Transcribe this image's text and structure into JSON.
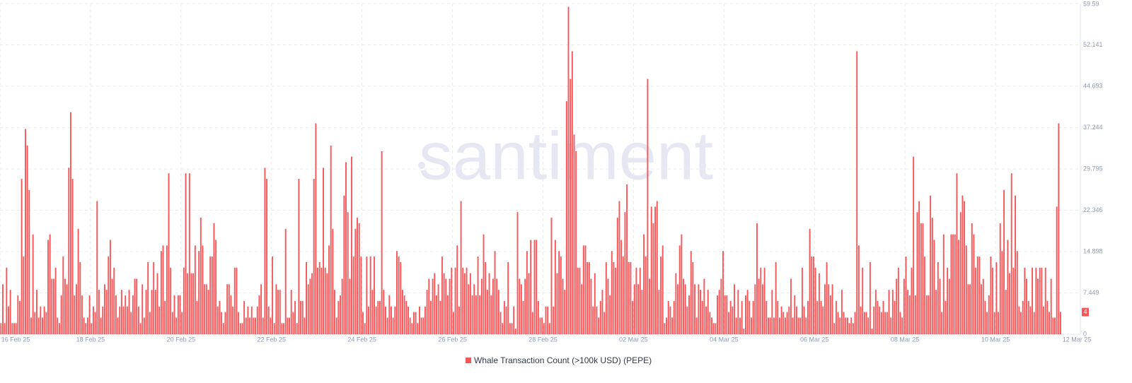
{
  "chart_data": {
    "type": "bar",
    "watermark": "santiment",
    "series": [
      {
        "name": "Whale Transaction Count (>100k USD) (PEPE)",
        "color": "#f6585a",
        "values": [
          2,
          9,
          2,
          12,
          5,
          8,
          2,
          2,
          2,
          7,
          6,
          28,
          14,
          37,
          34,
          26,
          3,
          18,
          4,
          8,
          3,
          5,
          3,
          5,
          4,
          17,
          18,
          10,
          10,
          12,
          3,
          2,
          7,
          14,
          10,
          9,
          30,
          40,
          28,
          7,
          9,
          19,
          13,
          7,
          3,
          2,
          3,
          7,
          2,
          5,
          4,
          24,
          8,
          3,
          5,
          9,
          8,
          14,
          17,
          10,
          12,
          7,
          3,
          5,
          8,
          5,
          7,
          5,
          8,
          4,
          7,
          10,
          10,
          5,
          2,
          9,
          3,
          8,
          13,
          4,
          8,
          13,
          8,
          11,
          5,
          15,
          16,
          6,
          16,
          29,
          12,
          4,
          7,
          3,
          7,
          7,
          4,
          12,
          29,
          11,
          29,
          11,
          11,
          16,
          6,
          15,
          21,
          16,
          9,
          9,
          8,
          14,
          14,
          20,
          17,
          5,
          6,
          4,
          2,
          4,
          9,
          9,
          7,
          5,
          12,
          12,
          4,
          2,
          2,
          6,
          3,
          5,
          3,
          5,
          3,
          3,
          5,
          7,
          9,
          3,
          30,
          28,
          5,
          3,
          14,
          2,
          9,
          8,
          8,
          2,
          2,
          19,
          3,
          3,
          8,
          4,
          6,
          2,
          28,
          6,
          6,
          3,
          13,
          9,
          10,
          11,
          28,
          38,
          12,
          13,
          12,
          30,
          12,
          11,
          16,
          34,
          19,
          8,
          3,
          6,
          7,
          10,
          25,
          31,
          22,
          10,
          32,
          14,
          19,
          21,
          20,
          14,
          4,
          2,
          14,
          5,
          14,
          8,
          14,
          5,
          6,
          6,
          33,
          8,
          5,
          3,
          7,
          5,
          3,
          5,
          15,
          14,
          13,
          8,
          7,
          6,
          5,
          3,
          2,
          4,
          4,
          2,
          5,
          3,
          3,
          5,
          8,
          10,
          6,
          10,
          11,
          7,
          9,
          6,
          14,
          11,
          10,
          7,
          10,
          12,
          4,
          12,
          16,
          5,
          24,
          12,
          11,
          12,
          9,
          11,
          7,
          9,
          7,
          14,
          7,
          10,
          18,
          13,
          8,
          11,
          7,
          10,
          15,
          10,
          8,
          4,
          2,
          6,
          5,
          13,
          2,
          2,
          5,
          1,
          22,
          10,
          9,
          6,
          10,
          15,
          11,
          17,
          4,
          17,
          17,
          6,
          3,
          3,
          2,
          5,
          5,
          2,
          21,
          5,
          17,
          11,
          15,
          14,
          10,
          8,
          42,
          59,
          46,
          51,
          36,
          33,
          12,
          12,
          9,
          16,
          16,
          13,
          13,
          10,
          5,
          11,
          5,
          3,
          6,
          8,
          4,
          13,
          10,
          7,
          15,
          13,
          12,
          21,
          24,
          17,
          14,
          22,
          27,
          13,
          13,
          6,
          9,
          12,
          9,
          12,
          8,
          18,
          14,
          46,
          10,
          23,
          20,
          23,
          24,
          8,
          14,
          16,
          2,
          3,
          6,
          5,
          3,
          6,
          11,
          9,
          16,
          18,
          10,
          9,
          5,
          7,
          15,
          13,
          9,
          3,
          9,
          8,
          6,
          10,
          5,
          8,
          4,
          3,
          2,
          2,
          7,
          8,
          10,
          15,
          7,
          7,
          4,
          6,
          5,
          9,
          3,
          8,
          3,
          6,
          1,
          7,
          8,
          6,
          3,
          6,
          9,
          20,
          10,
          12,
          9,
          12,
          6,
          3,
          3,
          8,
          3,
          13,
          6,
          3,
          5,
          4,
          3,
          4,
          5,
          10,
          3,
          7,
          5,
          3,
          3,
          12,
          5,
          3,
          6,
          19,
          14,
          14,
          12,
          6,
          11,
          6,
          5,
          9,
          13,
          9,
          7,
          9,
          2,
          6,
          4,
          3,
          8,
          4,
          3,
          3,
          2,
          3,
          2,
          4,
          51,
          16,
          5,
          12,
          4,
          4,
          3,
          13,
          1,
          5,
          8,
          6,
          5,
          4,
          6,
          4,
          4,
          8,
          3,
          8,
          6,
          10,
          12,
          4,
          3,
          10,
          14,
          8,
          7,
          12,
          32,
          7,
          22,
          24,
          20,
          20,
          14,
          7,
          7,
          25,
          21,
          17,
          8,
          13,
          10,
          4,
          18,
          6,
          12,
          10,
          18,
          18,
          18,
          29,
          17,
          22,
          25,
          24,
          16,
          9,
          9,
          20,
          18,
          12,
          14,
          14,
          9,
          10,
          6,
          4,
          7,
          14,
          12,
          4,
          13,
          4,
          20,
          15,
          26,
          8,
          17,
          11,
          29,
          12,
          25,
          15,
          5,
          4,
          6,
          12,
          10,
          6,
          5,
          12,
          4,
          12,
          10,
          12,
          12,
          5,
          12,
          6,
          4,
          10,
          3,
          3,
          23,
          38,
          4
        ]
      }
    ],
    "xlim": [
      0,
      573
    ],
    "xticks": [
      {
        "value": 0,
        "label": "16 Feb 25"
      },
      {
        "value": 48,
        "label": "18 Feb 25"
      },
      {
        "value": 96,
        "label": "20 Feb 25"
      },
      {
        "value": 144,
        "label": "22 Feb 25"
      },
      {
        "value": 192,
        "label": "24 Feb 25"
      },
      {
        "value": 240,
        "label": "26 Feb 25"
      },
      {
        "value": 288,
        "label": "28 Feb 25"
      },
      {
        "value": 336,
        "label": "02 Mar 25"
      },
      {
        "value": 384,
        "label": "04 Mar 25"
      },
      {
        "value": 432,
        "label": "06 Mar 25"
      },
      {
        "value": 480,
        "label": "08 Mar 25"
      },
      {
        "value": 528,
        "label": "10 Mar 25"
      },
      {
        "value": 576,
        "label": "12 Mar 25"
      }
    ],
    "ylim": [
      0,
      59.59
    ],
    "yticks": [
      0,
      7.449,
      14.898,
      22.346,
      29.795,
      37.244,
      44.693,
      52.141,
      59.59
    ],
    "grid": true
  }
}
